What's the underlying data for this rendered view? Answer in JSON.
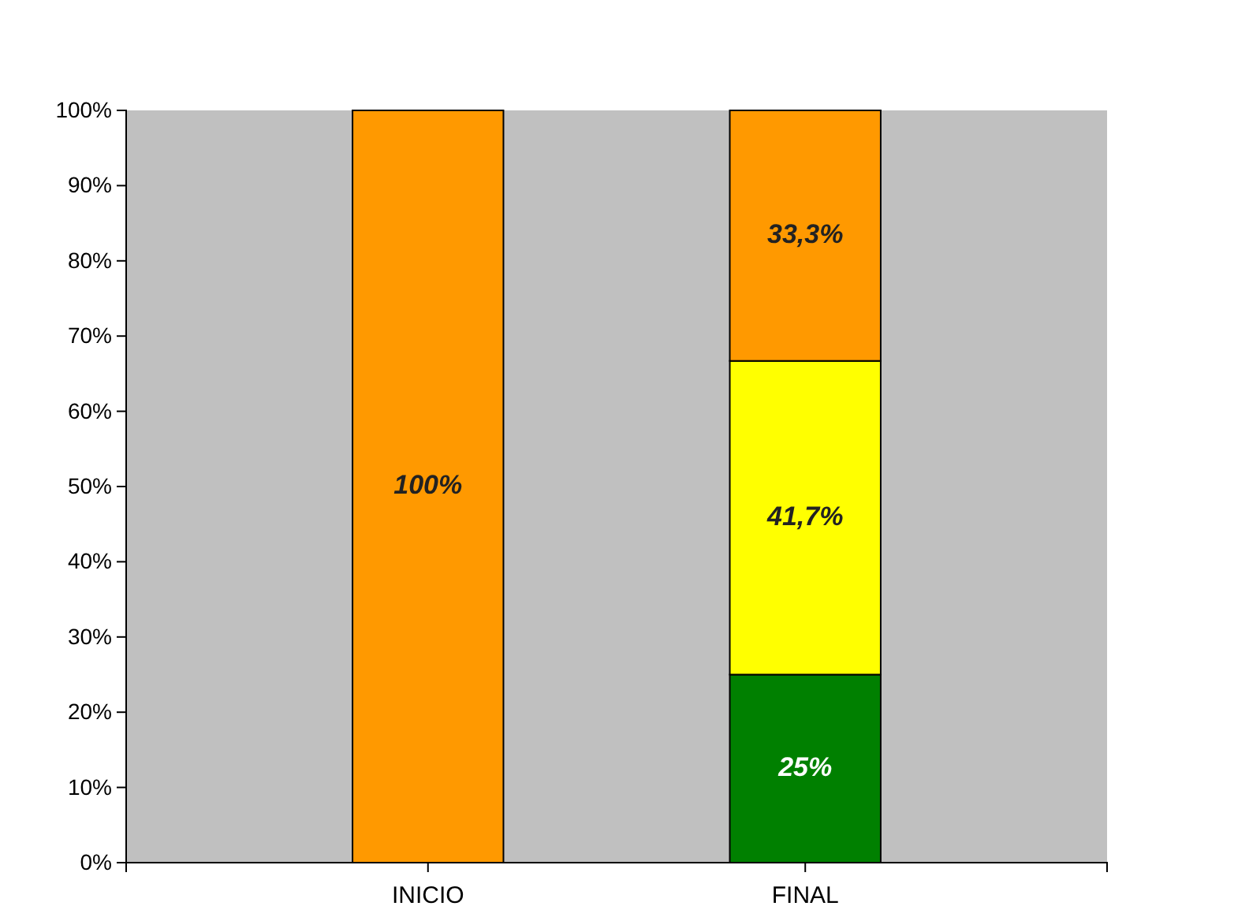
{
  "chart_data": {
    "type": "bar",
    "stacked": true,
    "categories": [
      "INICIO",
      "FINAL"
    ],
    "series": [
      {
        "color": "#008000",
        "values": [
          0,
          25
        ],
        "value_labels": [
          null,
          "25%"
        ]
      },
      {
        "color": "#ffff00",
        "values": [
          0,
          41.7
        ],
        "value_labels": [
          null,
          "41,7%"
        ]
      },
      {
        "color": "#ff9900",
        "values": [
          100,
          33.3
        ],
        "value_labels": [
          "100%",
          "33,3%"
        ]
      }
    ],
    "ylim": [
      0,
      100
    ],
    "yticks": [
      {
        "value": 0,
        "label": "0%"
      },
      {
        "value": 10,
        "label": "10%"
      },
      {
        "value": 20,
        "label": "20%"
      },
      {
        "value": 30,
        "label": "30%"
      },
      {
        "value": 40,
        "label": "40%"
      },
      {
        "value": 50,
        "label": "50%"
      },
      {
        "value": 60,
        "label": "60%"
      },
      {
        "value": 70,
        "label": "70%"
      },
      {
        "value": 80,
        "label": "80%"
      },
      {
        "value": 90,
        "label": "90%"
      },
      {
        "value": 100,
        "label": "100%"
      }
    ],
    "grid": false
  }
}
